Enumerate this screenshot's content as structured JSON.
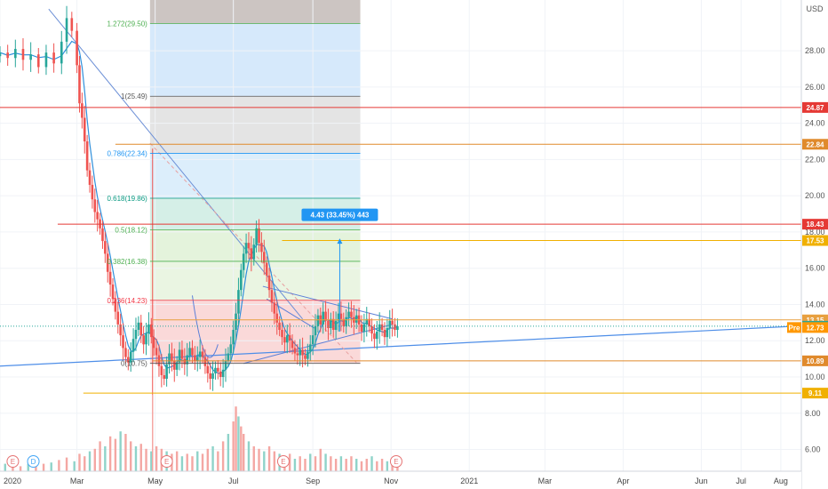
{
  "currency_label": "USD",
  "price_ticks": [
    "28.00",
    "26.00",
    "24.00",
    "22.00",
    "20.00",
    "18.00",
    "16.00",
    "14.00",
    "12.00",
    "10.00",
    "8.00",
    "6.00"
  ],
  "time_ticks": [
    "2020",
    "Mar",
    "May",
    "Jul",
    "Sep",
    "Nov",
    "2021",
    "Mar",
    "Apr",
    "Jun",
    "Jul",
    "Aug"
  ],
  "fib_levels": [
    {
      "label": "1.272(29.50)",
      "price": 29.5,
      "color": "#4caf50"
    },
    {
      "label": "1(25.49)",
      "price": 25.49,
      "color": "#555555"
    },
    {
      "label": "0.786(22.34)",
      "price": 22.34,
      "color": "#2196f3"
    },
    {
      "label": "0.618(19.86)",
      "price": 19.86,
      "color": "#089981"
    },
    {
      "label": "0.5(18.12)",
      "price": 18.12,
      "color": "#4caf50"
    },
    {
      "label": "0.382(16.38)",
      "price": 16.38,
      "color": "#4caf50"
    },
    {
      "label": "0.236(14.23)",
      "price": 14.23,
      "color": "#f23645"
    },
    {
      "label": "0(10.75)",
      "price": 10.75,
      "color": "#555555"
    }
  ],
  "horizontal_levels": [
    {
      "label": "24.87",
      "price": 24.87,
      "color": "#e53935"
    },
    {
      "label": "22.84",
      "price": 22.84,
      "color": "#e08a2c"
    },
    {
      "label": "18.43",
      "price": 18.43,
      "color": "#e53935"
    },
    {
      "label": "17.53",
      "price": 17.53,
      "color": "#f0b000"
    },
    {
      "label": "13.15",
      "price": 13.15,
      "color": "#e8a040"
    },
    {
      "label": "10.89",
      "price": 10.89,
      "color": "#e08a2c"
    },
    {
      "label": "9.11",
      "price": 9.11,
      "color": "#f0b000"
    }
  ],
  "current_price": {
    "label": "12.80",
    "price": 12.8,
    "color": "#26a69a"
  },
  "pre_market": {
    "tag": "Pre",
    "label": "12.73",
    "price": 12.73,
    "color": "#ff9800"
  },
  "measure": {
    "label": "4.43 (33.45%) 443"
  },
  "event_markers": [
    {
      "label": "E",
      "day": 10,
      "color": "#e57373"
    },
    {
      "label": "D",
      "day": 26,
      "color": "#42a5f5"
    },
    {
      "label": "E",
      "day": 130,
      "color": "#e57373"
    },
    {
      "label": "E",
      "day": 221,
      "color": "#e57373"
    },
    {
      "label": "E",
      "day": 309,
      "color": "#e57373"
    }
  ],
  "chart_data": {
    "type": "candlestick",
    "title": "",
    "x_unit": "days since 2020-01-01",
    "y_unit": "USD",
    "ylim": [
      4.8,
      30.8
    ],
    "xlim": [
      0,
      625
    ],
    "close_series": [
      [
        0,
        27.9
      ],
      [
        6,
        27.6
      ],
      [
        12,
        28.1
      ],
      [
        18,
        27.5
      ],
      [
        24,
        27.8
      ],
      [
        30,
        27.1
      ],
      [
        36,
        27.9
      ],
      [
        42,
        27.3
      ],
      [
        48,
        28.5
      ],
      [
        52,
        29.8
      ],
      [
        56,
        29.1
      ],
      [
        60,
        27.2
      ],
      [
        62,
        25.1
      ],
      [
        64,
        24.3
      ],
      [
        66,
        23.0
      ],
      [
        68,
        21.4
      ],
      [
        70,
        20.6
      ],
      [
        72,
        19.8
      ],
      [
        74,
        19.1
      ],
      [
        76,
        18.7
      ],
      [
        78,
        18.2
      ],
      [
        80,
        17.5
      ],
      [
        82,
        16.8
      ],
      [
        84,
        15.8
      ],
      [
        86,
        15.1
      ],
      [
        88,
        14.3
      ],
      [
        90,
        13.6
      ],
      [
        92,
        12.9
      ],
      [
        94,
        12.3
      ],
      [
        96,
        11.6
      ],
      [
        98,
        11.1
      ],
      [
        100,
        10.8
      ],
      [
        102,
        11.4
      ],
      [
        104,
        12.1
      ],
      [
        106,
        12.6
      ],
      [
        108,
        13.0
      ],
      [
        110,
        12.3
      ],
      [
        112,
        11.8
      ],
      [
        114,
        12.4
      ],
      [
        116,
        12.9
      ],
      [
        118,
        12.2
      ],
      [
        120,
        11.6
      ],
      [
        122,
        11.2
      ],
      [
        124,
        10.6
      ],
      [
        126,
        10.1
      ],
      [
        128,
        9.9
      ],
      [
        130,
        10.7
      ],
      [
        132,
        11.3
      ],
      [
        134,
        10.9
      ],
      [
        136,
        10.4
      ],
      [
        138,
        10.8
      ],
      [
        140,
        11.5
      ],
      [
        142,
        11.0
      ],
      [
        144,
        10.7
      ],
      [
        146,
        11.2
      ],
      [
        148,
        11.6
      ],
      [
        150,
        11.2
      ],
      [
        152,
        10.9
      ],
      [
        154,
        11.1
      ],
      [
        156,
        11.4
      ],
      [
        158,
        11.1
      ],
      [
        160,
        10.6
      ],
      [
        162,
        10.2
      ],
      [
        164,
        9.9
      ],
      [
        166,
        10.2
      ],
      [
        168,
        10.5
      ],
      [
        170,
        10.3
      ],
      [
        172,
        10.0
      ],
      [
        174,
        10.4
      ],
      [
        176,
        10.9
      ],
      [
        178,
        11.3
      ],
      [
        180,
        11.8
      ],
      [
        182,
        12.6
      ],
      [
        184,
        13.5
      ],
      [
        186,
        14.8
      ],
      [
        188,
        15.9
      ],
      [
        190,
        16.8
      ],
      [
        192,
        17.4
      ],
      [
        194,
        17.1
      ],
      [
        196,
        16.5
      ],
      [
        198,
        17.3
      ],
      [
        200,
        18.2
      ],
      [
        202,
        17.4
      ],
      [
        204,
        16.9
      ],
      [
        206,
        16.3
      ],
      [
        208,
        15.6
      ],
      [
        210,
        14.8
      ],
      [
        212,
        14.1
      ],
      [
        214,
        13.5
      ],
      [
        216,
        13.0
      ],
      [
        218,
        12.6
      ],
      [
        220,
        12.2
      ],
      [
        222,
        11.9
      ],
      [
        224,
        12.3
      ],
      [
        226,
        12.0
      ],
      [
        228,
        11.6
      ],
      [
        230,
        11.3
      ],
      [
        232,
        11.2
      ],
      [
        234,
        11.5
      ],
      [
        236,
        11.2
      ],
      [
        238,
        11.0
      ],
      [
        240,
        11.4
      ],
      [
        242,
        11.8
      ],
      [
        244,
        12.3
      ],
      [
        246,
        12.8
      ],
      [
        248,
        13.4
      ],
      [
        250,
        12.9
      ],
      [
        252,
        13.6
      ],
      [
        254,
        13.1
      ],
      [
        256,
        12.7
      ],
      [
        258,
        13.2
      ],
      [
        260,
        12.6
      ],
      [
        262,
        13.1
      ],
      [
        264,
        13.5
      ],
      [
        266,
        13.2
      ],
      [
        268,
        12.8
      ],
      [
        270,
        13.3
      ],
      [
        272,
        13.6
      ],
      [
        274,
        13.3
      ],
      [
        276,
        13.0
      ],
      [
        278,
        13.4
      ],
      [
        280,
        12.9
      ],
      [
        282,
        12.5
      ],
      [
        284,
        12.9
      ],
      [
        286,
        13.2
      ],
      [
        288,
        12.8
      ],
      [
        290,
        12.4
      ],
      [
        292,
        12.1
      ],
      [
        294,
        12.5
      ],
      [
        296,
        12.9
      ],
      [
        298,
        12.6
      ],
      [
        300,
        12.2
      ],
      [
        302,
        12.7
      ],
      [
        304,
        13.1
      ],
      [
        306,
        12.9
      ],
      [
        308,
        12.6
      ],
      [
        310,
        12.8
      ]
    ],
    "volume_series": [
      [
        4,
        0.3
      ],
      [
        10,
        0.25
      ],
      [
        16,
        0.2
      ],
      [
        22,
        0.3
      ],
      [
        28,
        0.4
      ],
      [
        34,
        0.3
      ],
      [
        40,
        0.35
      ],
      [
        46,
        0.45
      ],
      [
        52,
        0.55
      ],
      [
        58,
        0.4
      ],
      [
        62,
        0.7
      ],
      [
        66,
        0.6
      ],
      [
        70,
        0.8
      ],
      [
        74,
        0.9
      ],
      [
        78,
        1.2
      ],
      [
        82,
        1.0
      ],
      [
        86,
        1.4
      ],
      [
        90,
        1.3
      ],
      [
        94,
        1.6
      ],
      [
        98,
        1.5
      ],
      [
        102,
        1.2
      ],
      [
        106,
        1.0
      ],
      [
        110,
        1.1
      ],
      [
        114,
        0.9
      ],
      [
        118,
        0.8
      ],
      [
        122,
        1.0
      ],
      [
        126,
        0.9
      ],
      [
        130,
        0.8
      ],
      [
        134,
        0.7
      ],
      [
        138,
        0.8
      ],
      [
        142,
        0.6
      ],
      [
        146,
        0.7
      ],
      [
        150,
        0.6
      ],
      [
        154,
        0.8
      ],
      [
        158,
        0.7
      ],
      [
        162,
        0.9
      ],
      [
        166,
        1.0
      ],
      [
        170,
        0.8
      ],
      [
        174,
        1.2
      ],
      [
        178,
        1.5
      ],
      [
        182,
        2.0
      ],
      [
        184,
        2.6
      ],
      [
        186,
        2.2
      ],
      [
        188,
        1.8
      ],
      [
        190,
        1.5
      ],
      [
        194,
        1.2
      ],
      [
        198,
        1.0
      ],
      [
        202,
        0.9
      ],
      [
        206,
        0.8
      ],
      [
        210,
        1.0
      ],
      [
        214,
        0.8
      ],
      [
        218,
        0.7
      ],
      [
        222,
        0.6
      ],
      [
        226,
        0.7
      ],
      [
        230,
        0.5
      ],
      [
        234,
        0.6
      ],
      [
        238,
        0.5
      ],
      [
        242,
        0.7
      ],
      [
        246,
        0.6
      ],
      [
        250,
        0.9
      ],
      [
        254,
        0.7
      ],
      [
        258,
        0.6
      ],
      [
        262,
        0.5
      ],
      [
        266,
        0.6
      ],
      [
        270,
        0.5
      ],
      [
        274,
        0.6
      ],
      [
        278,
        0.5
      ],
      [
        282,
        0.4
      ],
      [
        286,
        0.5
      ],
      [
        290,
        0.6
      ],
      [
        294,
        0.4
      ],
      [
        298,
        0.5
      ],
      [
        302,
        0.4
      ],
      [
        306,
        0.3
      ],
      [
        310,
        0.3
      ]
    ]
  }
}
